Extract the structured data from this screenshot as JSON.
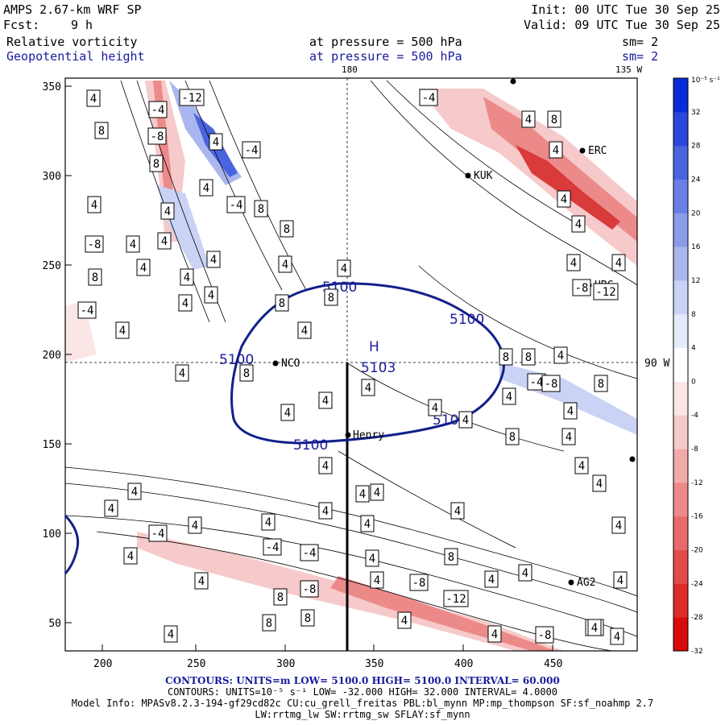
{
  "header": {
    "model": "AMPS 2.67-km WRF SP",
    "init": "Init: 00 UTC Tue 30 Sep 25",
    "fcst_label": "Fcst:",
    "fcst_value": "9 h",
    "valid": "Valid: 09 UTC Tue 30 Sep 25",
    "field1": "Relative vorticity",
    "field1_level": "at pressure =  500 hPa",
    "field1_smooth": "sm= 2",
    "field2": "Geopotential height",
    "field2_level": "at pressure =  500 hPa",
    "field2_smooth": "sm= 2"
  },
  "map": {
    "lon_top_180": "180",
    "lon_top_135w": "135 W",
    "lon_right_90w": "90 W",
    "x_ticks": [
      "200",
      "250",
      "300",
      "350",
      "400",
      "450"
    ],
    "y_ticks": [
      "350",
      "300",
      "250",
      "200",
      "150",
      "100",
      "50"
    ],
    "stations": [
      "KUK",
      "ERC",
      "NCO",
      "Henry",
      "HRC",
      "AG2"
    ],
    "high_label": "H",
    "high_value": "5103",
    "height_contour_labels": [
      "5100",
      "5100",
      "5100",
      "5100",
      "5100"
    ],
    "vort_labels": [
      "4",
      "-4",
      "8",
      "-8",
      "-12",
      "4",
      "-4",
      "8",
      "4",
      "-4",
      "8",
      "4",
      "4",
      "-8",
      "4",
      "4",
      "8",
      "4",
      "4",
      "4",
      "8",
      "4",
      "4",
      "4",
      "8",
      "8",
      "4",
      "-4",
      "4",
      "4",
      "4",
      "8",
      "4",
      "4",
      "4",
      "4",
      "4",
      "4",
      "4",
      "8",
      "4",
      "4",
      "4",
      "4",
      "4",
      "4",
      "4",
      "4",
      "4",
      "4",
      "4",
      "4",
      "4",
      "4",
      "-4",
      "-4",
      "4",
      "4",
      "-4",
      "4",
      "4",
      "-8",
      "-8",
      "-12",
      "8",
      "4",
      "4",
      "4",
      "8",
      "-8",
      "8",
      "8",
      "4",
      "4",
      "4",
      "-4",
      "4",
      "4",
      "-4",
      "-8",
      "8",
      "4",
      "8",
      "8",
      "4",
      "4",
      "8",
      "4",
      "4",
      "4",
      "-12",
      "4",
      "-8",
      "-4"
    ]
  },
  "colorbar": {
    "unit": "10⁻⁵ s⁻¹",
    "labels": [
      "32",
      "28",
      "24",
      "20",
      "16",
      "12",
      "8",
      "4",
      "0",
      "-4",
      "-8",
      "-12",
      "-16",
      "-20",
      "-24",
      "-28",
      "-32"
    ],
    "colors": [
      "#0a2bd9",
      "#2a47dc",
      "#4a63df",
      "#6a7fe3",
      "#8a9be8",
      "#aab7ee",
      "#cad3f5",
      "#e6ebfb",
      "#ffffff",
      "#fbe6e6",
      "#f6caca",
      "#f1aaaa",
      "#ec8a8a",
      "#e86a6a",
      "#e34a4a",
      "#df2a2a",
      "#d90a0a"
    ]
  },
  "footer": {
    "contours1": "CONTOURS:  UNITS=m  LOW=  5100.0        HIGH=  5100.0        INTERVAL=   60.000",
    "contours2": "CONTOURS:  UNITS=10⁻⁵ s⁻¹   LOW= -32.000        HIGH=  32.000        INTERVAL=   4.0000",
    "model_info": "Model Info: MPASv8.2.3-194-gf29cd82c CU:cu_grell_freitas PBL:bl_mynn MP:mp_thompson SF:sf_noahmp 2.7",
    "model_info2": "LW:rrtmg_lw SW:rrtmg_sw SFLAY:sf_mynn"
  }
}
